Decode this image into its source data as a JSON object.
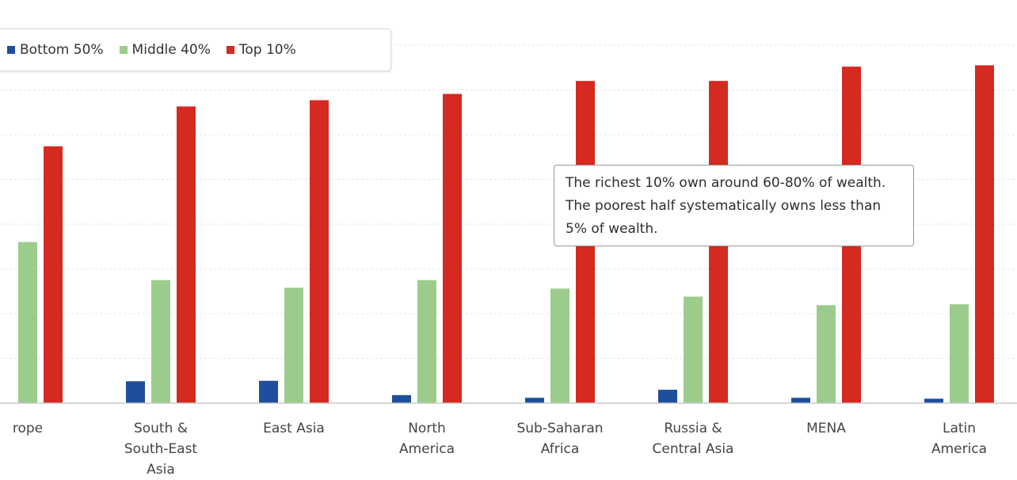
{
  "chart_data": {
    "type": "bar",
    "categories": [
      "Europe",
      "South & South-East Asia",
      "East Asia",
      "North America",
      "Sub-Saharan Africa",
      "Russia & Central Asia",
      "MENA",
      "Latin America"
    ],
    "category_labels": [
      "rope",
      "South &\nSouth-East\nAsia",
      "East Asia",
      "North\nAmerica",
      "Sub-Saharan\nAfrica",
      "Russia &\nCentral Asia",
      "MENA",
      "Latin\nAmerica"
    ],
    "series": [
      {
        "name": "Bottom 50%",
        "color": "#1f4e9c",
        "values": [
          null,
          4.9,
          5.0,
          1.8,
          1.2,
          3.0,
          1.2,
          1.0
        ]
      },
      {
        "name": "Middle 40%",
        "color": "#9bcc8c",
        "values": [
          36.0,
          27.5,
          25.8,
          27.5,
          25.6,
          23.8,
          21.9,
          22.1
        ]
      },
      {
        "name": "Top 10%",
        "color": "#d42a1f",
        "values": [
          57.4,
          66.3,
          67.7,
          69.1,
          72.0,
          72.0,
          75.2,
          75.5
        ]
      }
    ],
    "ylim": [
      0,
      80
    ],
    "grid": true,
    "legend": "top-left",
    "annotation": "The richest 10% own around 60-80% of wealth. The poorest half systematically owns less than 5% of wealth."
  }
}
